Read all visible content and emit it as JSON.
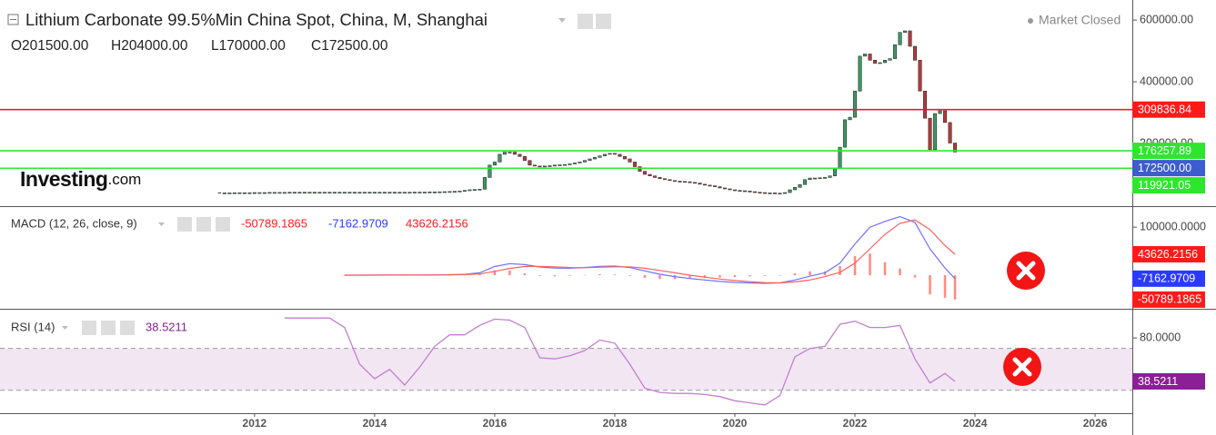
{
  "chart_data": [
    {
      "type": "candlestick",
      "title": "Lithium Carbonate 99.5%Min China Spot, China, M, Shanghai",
      "ohlc": [
        "O201500.00",
        "H204000.00",
        "L170000.00",
        "C172500.00"
      ],
      "status": "Market Closed",
      "watermark": [
        "Investing",
        ".com"
      ],
      "x": [
        "2011-06",
        "2011-07",
        "2011-08",
        "2011-09",
        "2011-10",
        "2011-11",
        "2011-12",
        "2012-01",
        "2012-02",
        "2012-03",
        "2012-04",
        "2012-05",
        "2012-06",
        "2012-07",
        "2012-08",
        "2012-09",
        "2012-10",
        "2012-11",
        "2012-12",
        "2013-01",
        "2013-02",
        "2013-03",
        "2013-04",
        "2013-05",
        "2013-06",
        "2013-07",
        "2013-08",
        "2013-09",
        "2013-10",
        "2013-11",
        "2013-12",
        "2014-01",
        "2014-02",
        "2014-03",
        "2014-04",
        "2014-05",
        "2014-06",
        "2014-07",
        "2014-08",
        "2014-09",
        "2014-10",
        "2014-11",
        "2014-12",
        "2015-01",
        "2015-02",
        "2015-03",
        "2015-04",
        "2015-05",
        "2015-06",
        "2015-07",
        "2015-08",
        "2015-09",
        "2015-10",
        "2015-11",
        "2015-12",
        "2016-01",
        "2016-02",
        "2016-03",
        "2016-04",
        "2016-05",
        "2016-06",
        "2016-07",
        "2016-08",
        "2016-09",
        "2016-10",
        "2016-11",
        "2016-12",
        "2017-01",
        "2017-02",
        "2017-03",
        "2017-04",
        "2017-05",
        "2017-06",
        "2017-07",
        "2017-08",
        "2017-09",
        "2017-10",
        "2017-11",
        "2017-12",
        "2018-01",
        "2018-02",
        "2018-03",
        "2018-04",
        "2018-05",
        "2018-06",
        "2018-07",
        "2018-08",
        "2018-09",
        "2018-10",
        "2018-11",
        "2018-12",
        "2019-01",
        "2019-02",
        "2019-03",
        "2019-04",
        "2019-05",
        "2019-06",
        "2019-07",
        "2019-08",
        "2019-09",
        "2019-10",
        "2019-11",
        "2019-12",
        "2020-01",
        "2020-02",
        "2020-03",
        "2020-04",
        "2020-05",
        "2020-06",
        "2020-07",
        "2020-08",
        "2020-09",
        "2020-10",
        "2020-11",
        "2020-12",
        "2021-01",
        "2021-02",
        "2021-03",
        "2021-04",
        "2021-05",
        "2021-06",
        "2021-07",
        "2021-08",
        "2021-09",
        "2021-10",
        "2021-11",
        "2021-12",
        "2022-01",
        "2022-02",
        "2022-03",
        "2022-04",
        "2022-05",
        "2022-06",
        "2022-07",
        "2022-08",
        "2022-09",
        "2022-10",
        "2022-11",
        "2022-12",
        "2023-01",
        "2023-02",
        "2023-03",
        "2023-04",
        "2023-05",
        "2023-06",
        "2023-07",
        "2023-08",
        "2023-09"
      ],
      "close": [
        40000,
        40000,
        40000,
        40500,
        40500,
        40500,
        40500,
        41000,
        41000,
        41000,
        41500,
        41500,
        41500,
        41500,
        42000,
        42000,
        42000,
        42000,
        42000,
        42000,
        42000,
        42000,
        42000,
        42000,
        42000,
        42000,
        42000,
        42000,
        42000,
        42000,
        42000,
        42000,
        42000,
        42000,
        42000,
        42000,
        42000,
        42000,
        42000,
        42500,
        42500,
        42500,
        43000,
        43000,
        43500,
        44000,
        44500,
        45000,
        46000,
        48000,
        50000,
        51000,
        52000,
        90000,
        130000,
        140000,
        165000,
        172000,
        172000,
        165000,
        158000,
        145000,
        130000,
        127000,
        126000,
        127000,
        128000,
        130000,
        131000,
        132000,
        134000,
        137000,
        140000,
        145000,
        150000,
        155000,
        160000,
        165000,
        168000,
        165000,
        158000,
        150000,
        140000,
        125000,
        110000,
        100000,
        95000,
        90000,
        86000,
        83000,
        80000,
        78000,
        77000,
        76000,
        74000,
        72000,
        68000,
        65000,
        63000,
        60000,
        56000,
        53000,
        50000,
        48000,
        47000,
        46000,
        44000,
        42000,
        41000,
        40000,
        40000,
        39000,
        39000,
        41000,
        50000,
        58000,
        67000,
        83000,
        88000,
        88000,
        89000,
        90000,
        95000,
        120000,
        188000,
        277000,
        285000,
        370000,
        483000,
        490000,
        470000,
        460000,
        462000,
        470000,
        475000,
        520000,
        560000,
        565000,
        515000,
        470000,
        370000,
        282000,
        180000,
        297000,
        306000,
        268000,
        201500,
        172500
      ],
      "up_color": "#3a9b63",
      "down_color": "#b53a3a",
      "last_label": "172500.00",
      "last_color": "#3d5ccf",
      "hlines": [
        {
          "value": 309836.84,
          "color": "#ff1a1a"
        },
        {
          "value": 176257.89,
          "color": "#2ee62e"
        },
        {
          "value": 119921.05,
          "color": "#2ee62e"
        }
      ],
      "xlim": [
        2007.76,
        2026.62
      ],
      "xticks": [
        2012,
        2014,
        2016,
        2018,
        2020,
        2022,
        2024,
        2026
      ],
      "ylim": [
        0,
        665000
      ],
      "yticks": [
        {
          "value": 200000,
          "label": "200000.00"
        },
        {
          "value": 400000,
          "label": "400000.00"
        },
        {
          "value": 600000,
          "label": "600000.00"
        }
      ]
    },
    {
      "type": "macd",
      "title": "MACD (12, 26, close, 9)",
      "x": [
        "2013-07",
        "2013-10",
        "2014-01",
        "2014-04",
        "2014-07",
        "2014-10",
        "2015-01",
        "2015-04",
        "2015-07",
        "2015-10",
        "2016-01",
        "2016-04",
        "2016-07",
        "2016-10",
        "2017-01",
        "2017-04",
        "2017-07",
        "2017-10",
        "2018-01",
        "2018-04",
        "2018-07",
        "2018-10",
        "2019-01",
        "2019-04",
        "2019-07",
        "2019-10",
        "2020-01",
        "2020-04",
        "2020-07",
        "2020-10",
        "2021-01",
        "2021-04",
        "2021-07",
        "2021-10",
        "2022-01",
        "2022-04",
        "2022-07",
        "2022-10",
        "2023-01",
        "2023-04",
        "2023-07",
        "2023-09"
      ],
      "series": [
        {
          "style": "histogram",
          "color": "#ff8a80",
          "label_color": "#ff1a1a",
          "values": [
            0,
            50,
            50,
            50,
            0,
            50,
            100,
            200,
            500,
            2500,
            10000,
            10000,
            4000,
            -1500,
            -2500,
            -1500,
            500,
            2000,
            1500,
            -1500,
            -5500,
            -8000,
            -8000,
            -7000,
            -6000,
            -5000,
            -4000,
            -2500,
            -1500,
            0,
            4000,
            8000,
            8000,
            19000,
            40000,
            45000,
            27000,
            14000,
            -5000,
            -40000,
            -47000,
            -50789.1865
          ]
        },
        {
          "style": "line",
          "color": "#7070ff",
          "label_color": "#2a3bff",
          "values": [
            0,
            100,
            200,
            300,
            300,
            400,
            600,
            1000,
            1800,
            5000,
            18000,
            24000,
            22000,
            17000,
            15000,
            14500,
            16000,
            18500,
            19000,
            16000,
            9000,
            2000,
            -3000,
            -7000,
            -10000,
            -13000,
            -15000,
            -16000,
            -17000,
            -16000,
            -10000,
            -2000,
            5000,
            25000,
            65000,
            100000,
            112000,
            122000,
            110000,
            55000,
            15000,
            -7162.9709
          ]
        },
        {
          "style": "line",
          "color": "#ff6060",
          "label_color": "#ff1a1a",
          "values": [
            0,
            50,
            150,
            250,
            300,
            350,
            500,
            800,
            1300,
            2500,
            8000,
            14000,
            18000,
            18500,
            17500,
            16000,
            15500,
            16500,
            17500,
            17500,
            14500,
            10000,
            5000,
            0,
            -4000,
            -8000,
            -11000,
            -13500,
            -15500,
            -16000,
            -14000,
            -10000,
            -3000,
            6000,
            25000,
            55000,
            85000,
            108000,
            115000,
            95000,
            62000,
            43626.2156
          ]
        }
      ],
      "ylim": [
        -68000,
        140000
      ],
      "yticks": [
        {
          "value": 100000,
          "label": "100000.0000"
        }
      ]
    },
    {
      "type": "rsi",
      "title": "RSI (14)",
      "x": [
        "2012-07",
        "2012-10",
        "2013-01",
        "2013-04",
        "2013-07",
        "2013-10",
        "2014-01",
        "2014-04",
        "2014-07",
        "2014-10",
        "2015-01",
        "2015-04",
        "2015-07",
        "2015-10",
        "2016-01",
        "2016-04",
        "2016-07",
        "2016-10",
        "2017-01",
        "2017-04",
        "2017-07",
        "2017-10",
        "2018-01",
        "2018-04",
        "2018-07",
        "2018-10",
        "2019-01",
        "2019-04",
        "2019-07",
        "2019-10",
        "2020-01",
        "2020-04",
        "2020-07",
        "2020-10",
        "2021-01",
        "2021-04",
        "2021-07",
        "2021-10",
        "2022-01",
        "2022-04",
        "2022-07",
        "2022-10",
        "2023-01",
        "2023-04",
        "2023-07",
        "2023-09"
      ],
      "values": [
        99,
        99,
        99,
        99,
        90,
        55,
        41,
        50,
        35,
        52,
        72,
        83,
        83,
        92,
        98,
        97,
        90,
        61,
        60,
        63,
        68,
        78,
        75,
        55,
        32,
        28,
        27,
        27,
        26,
        24,
        20,
        18,
        16,
        25,
        62,
        70,
        72,
        93,
        96,
        90,
        90,
        92,
        60,
        37,
        46,
        38.5211
      ],
      "color": "#c27fd1",
      "label_color": "#8a1f96",
      "band": [
        30,
        70
      ],
      "band_color": "#f2e6f3",
      "ylim": [
        9,
        107
      ],
      "yticks": [
        {
          "value": 80,
          "label": "80.0000"
        }
      ]
    }
  ]
}
